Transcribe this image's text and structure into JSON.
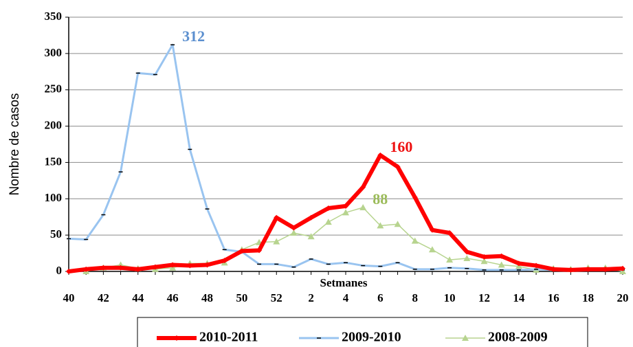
{
  "chart_data": {
    "type": "line",
    "y_label": "Nombre de casos",
    "x_label": "Setmanes",
    "categories": [
      "40",
      null,
      "42",
      null,
      "44",
      null,
      "46",
      null,
      "48",
      null,
      "50",
      null,
      "52",
      null,
      "2",
      null,
      "4",
      null,
      "6",
      null,
      "8",
      null,
      "10",
      null,
      "12",
      null,
      "14",
      null,
      "16",
      null,
      "18",
      null,
      "20"
    ],
    "series": [
      {
        "name": "2010-2011",
        "color": "#ff0000",
        "values": [
          0,
          3,
          5,
          5,
          3,
          6,
          9,
          8,
          9,
          15,
          28,
          29,
          74,
          60,
          74,
          87,
          90,
          116,
          160,
          144,
          102,
          57,
          53,
          27,
          20,
          21,
          11,
          8,
          3,
          2,
          3,
          3,
          4
        ]
      },
      {
        "name": "2009-2010",
        "color": "#99c4f0",
        "values": [
          45,
          44,
          78,
          137,
          273,
          271,
          312,
          168,
          86,
          30,
          27,
          10,
          10,
          6,
          17,
          10,
          12,
          8,
          7,
          12,
          3,
          3,
          5,
          4,
          2,
          2,
          2,
          3,
          2,
          2,
          2,
          3,
          2
        ]
      },
      {
        "name": "2008-2009",
        "color": "#b7d48f",
        "values": [
          null,
          0,
          5,
          9,
          4,
          3,
          5,
          11,
          11,
          12,
          30,
          40,
          41,
          53,
          48,
          68,
          81,
          88,
          63,
          65,
          42,
          30,
          16,
          18,
          14,
          9,
          7,
          2,
          4,
          3,
          5,
          5,
          0
        ]
      }
    ],
    "annotations": [
      {
        "text": "160",
        "color": "#ee1111"
      },
      {
        "text": "312",
        "color": "#5b8fcf"
      },
      {
        "text": "88",
        "color": "#9bbb59"
      }
    ],
    "ylim": [
      0,
      350
    ],
    "yticks": [
      0,
      50,
      100,
      150,
      200,
      250,
      300,
      350
    ],
    "grid": true,
    "legend": "bottom"
  }
}
